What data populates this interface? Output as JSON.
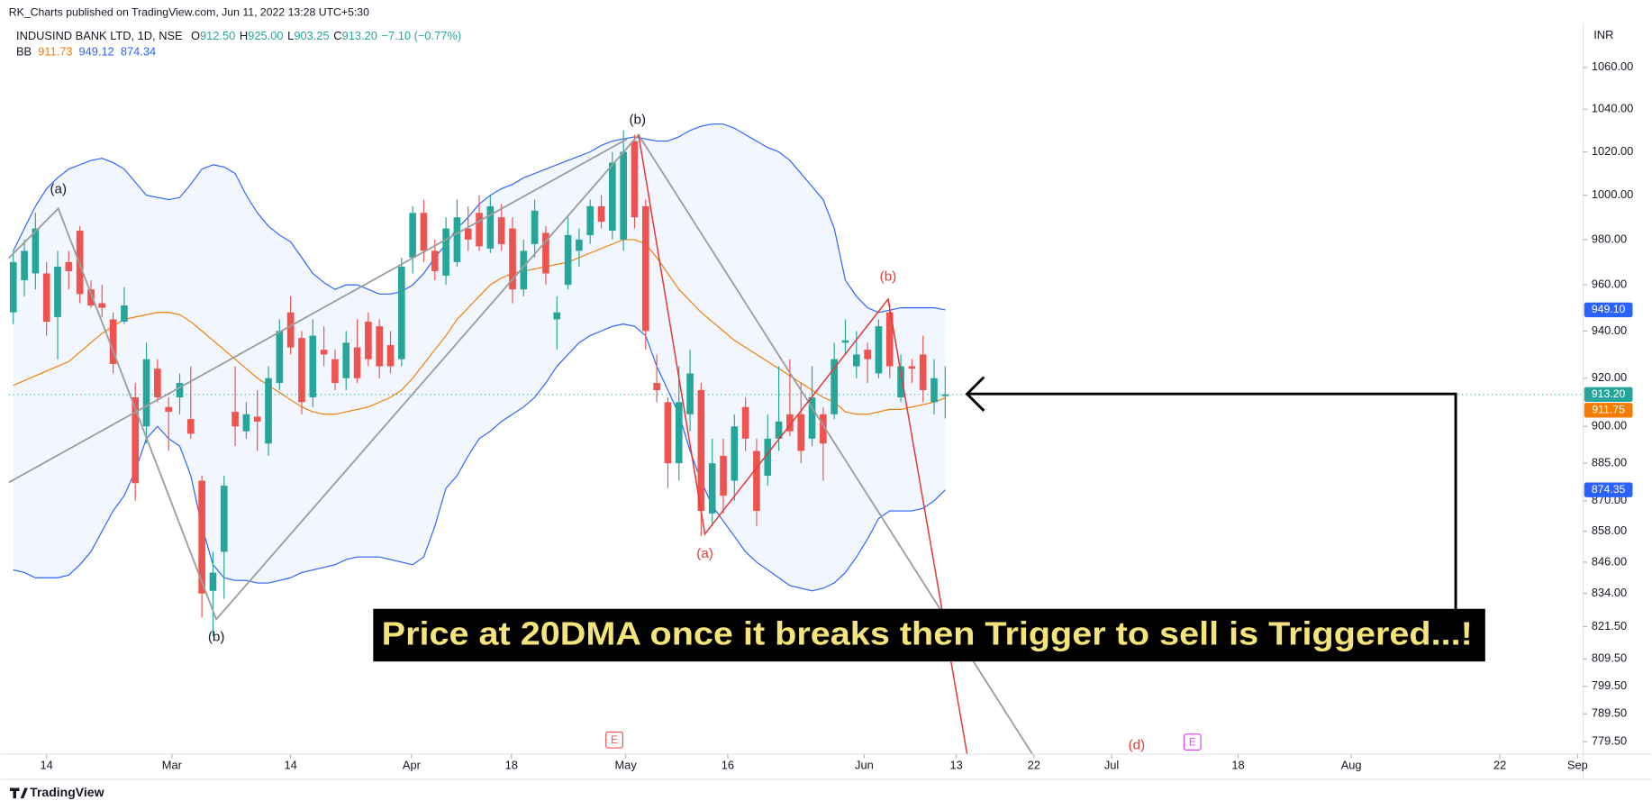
{
  "header": {
    "publisher": "RK_Charts published on TradingView.com, Jun 11, 2022 13:28 UTC+5:30",
    "symbol": "INDUSIND BANK LTD, 1D, NSE",
    "ohlc": [
      {
        "key": "O",
        "label": "912.50"
      },
      {
        "key": "H",
        "label": "925.00"
      },
      {
        "key": "L",
        "label": "903.25"
      },
      {
        "key": "C",
        "label": "913.20"
      }
    ],
    "change": "−7.10 (−0.77%)",
    "indicator": "BB",
    "indicator_values": [
      911.73,
      949.12,
      874.34
    ],
    "currency": "INR"
  },
  "footer": {
    "brand": "TradingView"
  },
  "annotation": {
    "text": "Price at 20DMA once it breaks then Trigger to sell is Triggered...!"
  },
  "wave_labels": [
    {
      "text": "(a)",
      "color": "#131722"
    },
    {
      "text": "(b)",
      "color": "#131722"
    },
    {
      "text": "(b)",
      "color": "#131722"
    },
    {
      "text": "(a)",
      "color": "#e53935"
    },
    {
      "text": "(b)",
      "color": "#e53935"
    },
    {
      "text": "(d)",
      "color": "#e53935"
    }
  ],
  "events": [
    {
      "text": "E",
      "color": "#ef5350"
    },
    {
      "text": "E",
      "color": "#e040fb"
    }
  ],
  "chart_data": {
    "type": "candlestick",
    "log_scale": true,
    "grid": false,
    "up_color": "#26a69a",
    "down_color": "#ef5350",
    "last_label": "913.20",
    "xlim": [
      -0.4,
      141.5
    ],
    "ylim": [
      775.1,
      1081.6
    ],
    "xticks": [
      {
        "value": 3,
        "label": "14"
      },
      {
        "value": 14.3,
        "label": "Mar"
      },
      {
        "value": 25,
        "label": "14"
      },
      {
        "value": 35.9,
        "label": "Apr"
      },
      {
        "value": 44.9,
        "label": "18"
      },
      {
        "value": 55.2,
        "label": "May"
      },
      {
        "value": 64.4,
        "label": "16"
      },
      {
        "value": 76.7,
        "label": "Jun"
      },
      {
        "value": 85,
        "label": "13"
      },
      {
        "value": 92,
        "label": "22"
      },
      {
        "value": 99,
        "label": "Jul"
      },
      {
        "value": 110.4,
        "label": "18"
      },
      {
        "value": 120.6,
        "label": "Aug"
      },
      {
        "value": 134,
        "label": "22"
      },
      {
        "value": 141,
        "label": "Sep"
      }
    ],
    "yticks": [
      {
        "value": 1060,
        "label": "1060.00"
      },
      {
        "value": 1040,
        "label": "1040.00"
      },
      {
        "value": 1020,
        "label": "1020.00"
      },
      {
        "value": 1000,
        "label": "1000.00"
      },
      {
        "value": 980,
        "label": "980.00"
      },
      {
        "value": 960,
        "label": "960.00"
      },
      {
        "value": 940,
        "label": "940.00"
      },
      {
        "value": 920,
        "label": "920.00"
      },
      {
        "value": 900,
        "label": "900.00"
      },
      {
        "value": 885,
        "label": "885.00"
      },
      {
        "value": 870,
        "label": "870.00"
      },
      {
        "value": 858,
        "label": "858.00"
      },
      {
        "value": 846,
        "label": "846.00"
      },
      {
        "value": 834,
        "label": "834.00"
      },
      {
        "value": 821.5,
        "label": "821.50"
      },
      {
        "value": 809.5,
        "label": "809.50"
      },
      {
        "value": 799.5,
        "label": "799.50"
      },
      {
        "value": 789.5,
        "label": "789.50"
      },
      {
        "value": 779.5,
        "label": "779.50"
      }
    ],
    "ohlc": [
      [
        948,
        975,
        943,
        970
      ],
      [
        962,
        980,
        955,
        975
      ],
      [
        965,
        992,
        958,
        985
      ],
      [
        965,
        970,
        938,
        944
      ],
      [
        946,
        975,
        928,
        968
      ],
      [
        970,
        975,
        958,
        966
      ],
      [
        984,
        986,
        952,
        956
      ],
      [
        958,
        962,
        950,
        951
      ],
      [
        952,
        960,
        946,
        950
      ],
      [
        945,
        948,
        922,
        926
      ],
      [
        944,
        959,
        943,
        951
      ],
      [
        912,
        918,
        870,
        877
      ],
      [
        900,
        935,
        893,
        928
      ],
      [
        924,
        928,
        910,
        912
      ],
      [
        908,
        912,
        890,
        906
      ],
      [
        912,
        922,
        905,
        918
      ],
      [
        903,
        925,
        895,
        897
      ],
      [
        878,
        880,
        825,
        834
      ],
      [
        835,
        850,
        818,
        842
      ],
      [
        850,
        880,
        832,
        876
      ],
      [
        906,
        925,
        892,
        900
      ],
      [
        898,
        910,
        895,
        905
      ],
      [
        904,
        915,
        890,
        902
      ],
      [
        893,
        925,
        888,
        920
      ],
      [
        918,
        945,
        915,
        940
      ],
      [
        948,
        955,
        930,
        933
      ],
      [
        937,
        940,
        905,
        910
      ],
      [
        912,
        945,
        908,
        938
      ],
      [
        932,
        942,
        925,
        930
      ],
      [
        928,
        932,
        915,
        918
      ],
      [
        920,
        940,
        915,
        935
      ],
      [
        933,
        945,
        918,
        920
      ],
      [
        944,
        948,
        925,
        928
      ],
      [
        942,
        945,
        920,
        925
      ],
      [
        934,
        940,
        922,
        925
      ],
      [
        928,
        972,
        925,
        968
      ],
      [
        972,
        995,
        965,
        992
      ],
      [
        992,
        998,
        970,
        975
      ],
      [
        975,
        980,
        962,
        966
      ],
      [
        964,
        990,
        960,
        985
      ],
      [
        970,
        998,
        968,
        990
      ],
      [
        985,
        995,
        975,
        980
      ],
      [
        992,
        1000,
        975,
        977
      ],
      [
        976,
        1000,
        974,
        995
      ],
      [
        990,
        996,
        975,
        978
      ],
      [
        985,
        990,
        952,
        958
      ],
      [
        958,
        980,
        955,
        975
      ],
      [
        978,
        998,
        972,
        993
      ],
      [
        983,
        986,
        960,
        965
      ],
      [
        945,
        955,
        932,
        948
      ],
      [
        960,
        990,
        958,
        982
      ],
      [
        975,
        985,
        968,
        980
      ],
      [
        982,
        998,
        978,
        995
      ],
      [
        995,
        1000,
        985,
        988
      ],
      [
        984,
        1020,
        980,
        1015
      ],
      [
        980,
        1030,
        975,
        1020
      ],
      [
        1025,
        1028,
        985,
        990
      ],
      [
        995,
        998,
        932,
        940
      ],
      [
        918,
        930,
        910,
        915
      ],
      [
        910,
        912,
        875,
        885
      ],
      [
        885,
        925,
        878,
        910
      ],
      [
        905,
        932,
        898,
        922
      ],
      [
        915,
        918,
        856,
        866
      ],
      [
        865,
        895,
        860,
        885
      ],
      [
        888,
        895,
        865,
        872
      ],
      [
        878,
        905,
        870,
        900
      ],
      [
        908,
        912,
        890,
        895
      ],
      [
        890,
        895,
        860,
        866
      ],
      [
        880,
        905,
        876,
        895
      ],
      [
        895,
        925,
        890,
        902
      ],
      [
        905,
        928,
        896,
        898
      ],
      [
        905,
        918,
        885,
        890
      ],
      [
        895,
        925,
        892,
        912
      ],
      [
        905,
        908,
        878,
        893
      ],
      [
        905,
        935,
        903,
        928
      ],
      [
        935,
        945,
        930,
        936
      ],
      [
        925,
        940,
        920,
        930
      ],
      [
        932,
        935,
        918,
        928
      ],
      [
        922,
        945,
        920,
        942
      ],
      [
        948,
        952,
        920,
        925
      ],
      [
        912,
        930,
        910,
        925
      ],
      [
        925,
        928,
        918,
        924
      ],
      [
        930,
        938,
        910,
        915
      ],
      [
        910,
        928,
        905,
        920
      ],
      [
        912.5,
        925,
        903.25,
        913.2
      ]
    ],
    "bands": [
      {
        "color": "#2962ff",
        "last_label": "949.10",
        "values": [
          975,
          985,
          995,
          1003,
          1008,
          1012,
          1014,
          1016,
          1017,
          1015,
          1012,
          1006,
          1000,
          999,
          998,
          999,
          1005,
          1012,
          1014,
          1013,
          1010,
          1000,
          992,
          986,
          982,
          979,
          972,
          965,
          961,
          958,
          960,
          960,
          958,
          956,
          956,
          957,
          960,
          965,
          972,
          978,
          985,
          990,
          996,
          1000,
          1003,
          1005,
          1008,
          1010,
          1012,
          1014,
          1016,
          1018,
          1020,
          1023,
          1025,
          1026,
          1027,
          1026,
          1025,
          1025,
          1027,
          1030,
          1032,
          1033,
          1033,
          1031,
          1028,
          1025,
          1022,
          1020,
          1016,
          1010,
          1004,
          998,
          985,
          962,
          955,
          950,
          948,
          949,
          950,
          950,
          950,
          950,
          949.1
        ]
      },
      {
        "color": "#f57c00",
        "last_label": "911.75",
        "values": [
          917,
          919,
          921,
          923,
          925,
          927,
          931,
          935,
          939,
          942,
          945,
          946,
          947,
          948,
          948,
          947,
          944,
          940,
          936,
          932,
          928,
          924,
          920,
          917,
          914,
          911,
          908,
          906,
          905,
          905,
          906,
          907,
          908,
          910,
          912,
          915,
          920,
          926,
          932,
          938,
          945,
          950,
          955,
          960,
          963,
          965,
          966,
          967,
          968,
          969,
          970,
          972,
          974,
          976,
          978,
          980,
          980,
          978,
          972,
          965,
          958,
          953,
          948,
          944,
          940,
          936,
          933,
          930,
          927,
          924,
          921,
          918,
          915,
          912,
          910,
          906,
          905,
          905,
          906,
          907,
          907,
          908,
          909,
          910,
          911.75
        ]
      },
      {
        "color": "#2962ff",
        "last_label": "874.35",
        "values": [
          843,
          842,
          840,
          840,
          840,
          841,
          845,
          850,
          858,
          866,
          872,
          882,
          895,
          900,
          895,
          892,
          880,
          860,
          845,
          840,
          839,
          839,
          838,
          838,
          839,
          840,
          842,
          843,
          844,
          845,
          847,
          848,
          848,
          848,
          847,
          846,
          845,
          848,
          860,
          875,
          880,
          888,
          895,
          898,
          902,
          905,
          908,
          912,
          918,
          925,
          930,
          935,
          938,
          940,
          942,
          943,
          942,
          938,
          925,
          915,
          905,
          890,
          878,
          868,
          862,
          856,
          850,
          846,
          843,
          840,
          837,
          836,
          835,
          836,
          838,
          842,
          848,
          855,
          863,
          866,
          866,
          866,
          867,
          870,
          874.35
        ]
      }
    ]
  }
}
